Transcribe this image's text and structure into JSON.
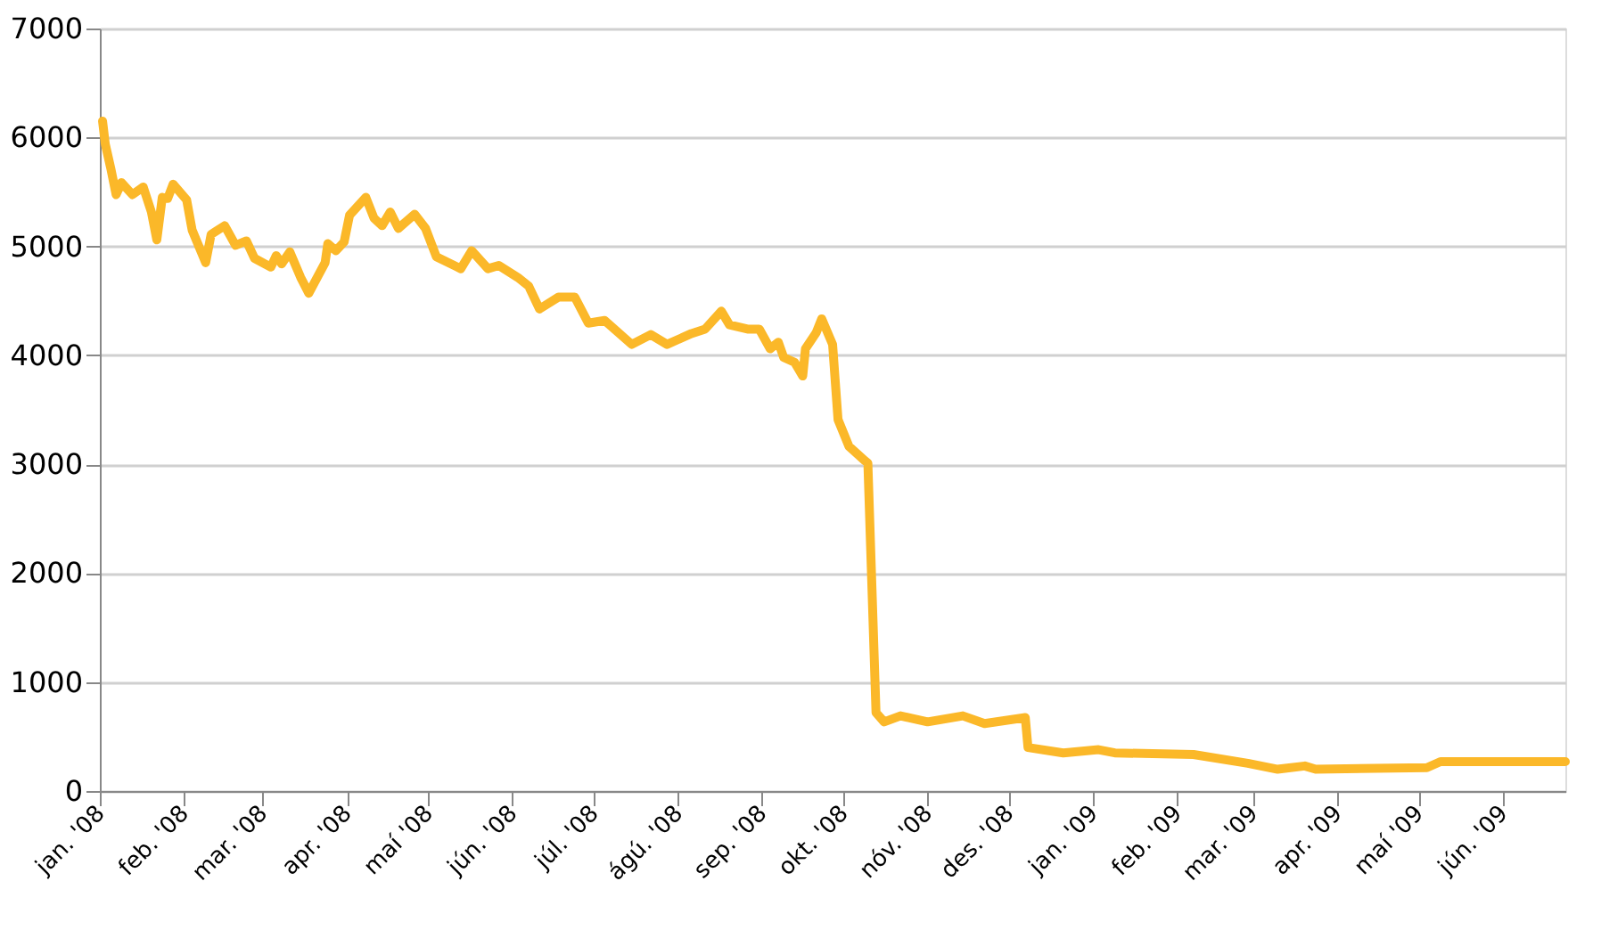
{
  "chart_data": {
    "type": "line",
    "x": [
      "2008-01-02",
      "2008-01-03",
      "2008-01-05",
      "2008-01-07",
      "2008-01-09",
      "2008-01-13",
      "2008-01-17",
      "2008-01-20",
      "2008-01-22",
      "2008-01-24",
      "2008-01-26",
      "2008-01-28",
      "2008-02-02",
      "2008-02-04",
      "2008-02-09",
      "2008-02-11",
      "2008-02-16",
      "2008-02-20",
      "2008-02-24",
      "2008-02-27",
      "2008-03-04",
      "2008-03-06",
      "2008-03-08",
      "2008-03-11",
      "2008-03-15",
      "2008-03-18",
      "2008-03-24",
      "2008-03-25",
      "2008-03-28",
      "2008-03-31",
      "2008-04-02",
      "2008-04-08",
      "2008-04-11",
      "2008-04-14",
      "2008-04-17",
      "2008-04-20",
      "2008-04-26",
      "2008-04-30",
      "2008-05-04",
      "2008-05-13",
      "2008-05-17",
      "2008-05-23",
      "2008-05-27",
      "2008-06-03",
      "2008-06-07",
      "2008-06-11",
      "2008-06-18",
      "2008-06-24",
      "2008-06-29",
      "2008-07-05",
      "2008-07-15",
      "2008-07-22",
      "2008-07-28",
      "2008-08-06",
      "2008-08-11",
      "2008-08-17",
      "2008-08-20",
      "2008-08-27",
      "2008-08-31",
      "2008-09-04",
      "2008-09-07",
      "2008-09-09",
      "2008-09-13",
      "2008-09-16",
      "2008-09-17",
      "2008-09-21",
      "2008-09-23",
      "2008-09-27",
      "2008-09-29",
      "2008-10-03",
      "2008-10-09",
      "2008-10-10",
      "2008-10-13",
      "2008-10-16",
      "2008-10-22",
      "2008-11-01",
      "2008-11-14",
      "2008-11-22",
      "2008-12-07",
      "2008-12-08",
      "2008-12-21",
      "2009-01-03",
      "2009-01-09",
      "2009-02-07",
      "2009-02-27",
      "2009-03-10",
      "2009-03-20",
      "2009-03-24",
      "2009-05-04",
      "2009-05-09",
      "2009-06-24"
    ],
    "series": [
      {
        "color": "#fbb829",
        "values": [
          6150,
          5940,
          5720,
          5475,
          5585,
          5475,
          5545,
          5315,
          5060,
          5450,
          5440,
          5570,
          5425,
          5150,
          4850,
          5110,
          5190,
          5010,
          5050,
          4890,
          4810,
          4915,
          4840,
          4950,
          4715,
          4570,
          4850,
          5025,
          4960,
          5040,
          5285,
          5450,
          5260,
          5190,
          5315,
          5165,
          5295,
          5165,
          4905,
          4795,
          4960,
          4795,
          4825,
          4715,
          4635,
          4425,
          4535,
          4535,
          4295,
          4320,
          4100,
          4190,
          4100,
          4200,
          4240,
          4405,
          4280,
          4240,
          4240,
          4060,
          4120,
          3980,
          3935,
          3810,
          4060,
          4210,
          4335,
          4100,
          3410,
          3165,
          3030,
          3010,
          720,
          635,
          690,
          635,
          690,
          620,
          675,
          400,
          350,
          380,
          350,
          335,
          255,
          200,
          230,
          200,
          215,
          270,
          270
        ]
      }
    ],
    "xlim": [
      "2008-01-01",
      "2009-06-24"
    ],
    "xticks": [
      {
        "value": "2008-01-01",
        "label": "jan. '08"
      },
      {
        "value": "2008-02-01",
        "label": "feb. '08"
      },
      {
        "value": "2008-03-01",
        "label": "mar. '08"
      },
      {
        "value": "2008-04-01",
        "label": "apr. '08"
      },
      {
        "value": "2008-05-01",
        "label": "maí '08"
      },
      {
        "value": "2008-06-01",
        "label": "jún. '08"
      },
      {
        "value": "2008-07-01",
        "label": "júl. '08"
      },
      {
        "value": "2008-08-01",
        "label": "ágú. '08"
      },
      {
        "value": "2008-09-01",
        "label": "sep. '08"
      },
      {
        "value": "2008-10-01",
        "label": "okt. '08"
      },
      {
        "value": "2008-11-01",
        "label": "nóv. '08"
      },
      {
        "value": "2008-12-01",
        "label": "des. '08"
      },
      {
        "value": "2009-01-01",
        "label": "jan. '09"
      },
      {
        "value": "2009-02-01",
        "label": "feb. '09"
      },
      {
        "value": "2009-03-01",
        "label": "mar. '09"
      },
      {
        "value": "2009-04-01",
        "label": "apr. '09"
      },
      {
        "value": "2009-05-01",
        "label": "maí '09"
      },
      {
        "value": "2009-06-01",
        "label": "jún. '09"
      }
    ],
    "ylim": [
      0,
      7000
    ],
    "yticks": [
      0,
      1000,
      2000,
      3000,
      4000,
      5000,
      6000,
      7000
    ],
    "grid": "y",
    "line_style": "solid",
    "marker": "none"
  }
}
